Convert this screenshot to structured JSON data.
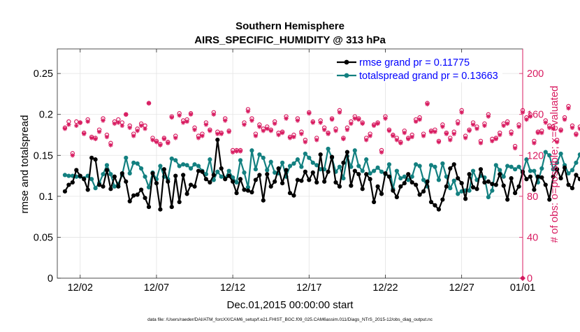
{
  "chart_data": {
    "type": "line",
    "title": "Southern Hemisphere",
    "subtitle": "AIRS_SPECIFIC_HUMIDITY @ 313 hPa",
    "xlabel": "Dec.01,2015 00:00:00 start",
    "ylabel_left": "rmse and totalspread",
    "ylabel_right": "# of obs: o=possible; ×=evaluated",
    "footnote": "data file: /Users/raeder/DAI/ATM_forcXX/CAM6_setup/f.e21.FHIST_BGC.f09_025.CAM6assim.011/Diags_NTrS_2015-12/obs_diag_output.nc",
    "xlim": [
      0.5,
      31.0
    ],
    "ylim_left": [
      0,
      0.28
    ],
    "ylim_right": [
      0,
      224
    ],
    "x_ticks": [
      2,
      7,
      12,
      17,
      22,
      27,
      31
    ],
    "x_tick_labels": [
      "12/02",
      "12/07",
      "12/12",
      "12/17",
      "12/22",
      "12/27",
      "01/01"
    ],
    "y_ticks_left": [
      0,
      0.05,
      0.1,
      0.15,
      0.2,
      0.25
    ],
    "y_tick_labels_left": [
      "0",
      "0.05",
      "0.1",
      "0.15",
      "0.2",
      "0.25"
    ],
    "y_ticks_right": [
      0,
      40,
      80,
      120,
      160,
      200
    ],
    "y_tick_labels_right": [
      "0",
      "40",
      "80",
      "120",
      "160",
      "200"
    ],
    "grid": true,
    "legend_position": "top-right",
    "colors": {
      "rmse": "#000000",
      "spread": "#138080",
      "obs": "#d81b60",
      "axis": "#262626",
      "grid": "#e3e3e3"
    },
    "series": [
      {
        "name": "rmse grand pr = 0.11775",
        "axis": "left",
        "values": [
          0.106,
          0.114,
          0.117,
          0.132,
          0.125,
          0.121,
          0.108,
          0.147,
          0.145,
          0.114,
          0.112,
          0.132,
          0.109,
          0.124,
          0.112,
          0.128,
          0.118,
          0.094,
          0.101,
          0.102,
          0.108,
          0.098,
          0.087,
          0.128,
          0.116,
          0.084,
          0.133,
          0.118,
          0.087,
          0.125,
          0.093,
          0.126,
          0.103,
          0.114,
          0.112,
          0.131,
          0.13,
          0.121,
          0.117,
          0.126,
          0.169,
          0.134,
          0.121,
          0.125,
          0.118,
          0.104,
          0.121,
          0.108,
          0.107,
          0.105,
          0.12,
          0.126,
          0.095,
          0.127,
          0.112,
          0.118,
          0.134,
          0.116,
          0.132,
          0.104,
          0.101,
          0.12,
          0.119,
          0.13,
          0.12,
          0.129,
          0.117,
          0.151,
          0.118,
          0.13,
          0.148,
          0.117,
          0.112,
          0.141,
          0.154,
          0.113,
          0.131,
          0.127,
          0.109,
          0.127,
          0.121,
          0.093,
          0.112,
          0.103,
          0.128,
          0.124,
          0.107,
          0.099,
          0.112,
          0.116,
          0.127,
          0.117,
          0.114,
          0.102,
          0.106,
          0.118,
          0.093,
          0.089,
          0.084,
          0.096,
          0.112,
          0.134,
          0.139,
          0.122,
          0.116,
          0.097,
          0.127,
          0.111,
          0.109,
          0.133,
          0.117,
          0.118,
          0.115,
          0.114,
          0.127,
          0.113,
          0.096,
          0.122,
          0.104,
          0.112,
          0.13,
          0.121,
          0.124,
          0.108,
          0.124,
          0.123,
          0.114,
          0.096,
          0.124,
          0.133,
          0.122,
          0.135,
          0.114,
          0.11,
          0.126,
          0.121,
          0.118,
          0.113,
          0.119,
          0.125,
          0.111,
          0.117,
          0.102,
          0.114,
          0.118,
          0.099,
          0.107,
          0.136,
          0.11,
          0.118,
          0.126,
          0.104,
          0.12,
          0.107,
          0.115,
          0.127,
          0.121,
          0.136,
          0.138,
          0.106,
          0.112,
          0.13,
          0.125,
          0.131,
          0.135,
          0.113,
          0.121,
          0.129,
          0.122,
          0.104,
          0.105,
          0.163,
          0.14,
          0.132
        ]
      },
      {
        "name": "totalspread grand pr = 0.13663",
        "axis": "left",
        "values": [
          0.126,
          0.125,
          0.125,
          0.124,
          0.124,
          0.122,
          0.125,
          0.121,
          0.11,
          0.116,
          0.127,
          0.138,
          0.127,
          0.112,
          0.115,
          0.126,
          0.147,
          0.128,
          0.141,
          0.14,
          0.134,
          0.124,
          0.111,
          0.129,
          0.121,
          0.137,
          0.124,
          0.121,
          0.146,
          0.144,
          0.137,
          0.139,
          0.138,
          0.134,
          0.139,
          0.137,
          0.131,
          0.127,
          0.145,
          0.12,
          0.13,
          0.124,
          0.122,
          0.131,
          0.123,
          0.117,
          0.144,
          0.129,
          0.111,
          0.156,
          0.133,
          0.151,
          0.147,
          0.132,
          0.142,
          0.129,
          0.128,
          0.141,
          0.124,
          0.137,
          0.14,
          0.145,
          0.136,
          0.152,
          0.147,
          0.141,
          0.138,
          0.133,
          0.133,
          0.158,
          0.147,
          0.13,
          0.136,
          0.122,
          0.149,
          0.136,
          0.156,
          0.137,
          0.131,
          0.145,
          0.128,
          0.131,
          0.135,
          0.13,
          0.127,
          0.139,
          0.109,
          0.131,
          0.122,
          0.124,
          0.12,
          0.124,
          0.139,
          0.137,
          0.12,
          0.112,
          0.138,
          0.136,
          0.12,
          0.14,
          0.124,
          0.11,
          0.119,
          0.103,
          0.106,
          0.107,
          0.107,
          0.131,
          0.12,
          0.125,
          0.123,
          0.099,
          0.107,
          0.138,
          0.132,
          0.124,
          0.137,
          0.136,
          0.133,
          0.136,
          0.129,
          0.145,
          0.131,
          0.131,
          0.117,
          0.134,
          0.154,
          0.15,
          0.133,
          0.141,
          0.152,
          0.138,
          0.128,
          0.132,
          0.141,
          0.151,
          0.133,
          0.142,
          0.136,
          0.145,
          0.129,
          0.151,
          0.139,
          0.114,
          0.135,
          0.113,
          0.121,
          0.138,
          0.134,
          0.13,
          0.119,
          0.116,
          0.14,
          0.111,
          0.133,
          0.124,
          0.127,
          0.135,
          0.123,
          0.148,
          0.144,
          0.136,
          0.134,
          0.124,
          0.138,
          0.148,
          0.132,
          0.144,
          0.13,
          0.122,
          0.145,
          0.155,
          0.151,
          0.124
        ]
      },
      {
        "name": "obs possible",
        "axis": "right",
        "marker": "circle",
        "values": [
          147,
          153,
          122,
          153,
          152,
          142,
          155,
          138,
          137,
          145,
          156,
          140,
          132,
          153,
          155,
          152,
          160,
          149,
          141,
          146,
          151,
          149,
          171,
          137,
          134,
          131,
          137,
          133,
          158,
          139,
          161,
          154,
          155,
          161,
          147,
          139,
          141,
          152,
          145,
          162,
          143,
          142,
          156,
          144,
          125,
          125,
          125,
          152,
          165,
          156,
          141,
          150,
          146,
          148,
          145,
          153,
          142,
          143,
          158,
          138,
          140,
          156,
          143,
          135,
          162,
          153,
          137,
          154,
          147,
          142,
          156,
          146,
          164,
          137,
          147,
          153,
          158,
          156,
          152,
          137,
          141,
          150,
          152,
          125,
          158,
          145,
          140,
          137,
          133,
          144,
          137,
          140,
          155,
          157,
          141,
          171,
          144,
          145,
          134,
          150,
          142,
          137,
          143,
          153,
          164,
          139,
          145,
          152,
          148,
          134,
          151,
          160,
          136,
          137,
          142,
          151,
          153,
          143,
          129,
          150,
          164,
          157,
          160,
          134,
          143,
          144,
          154,
          149,
          148,
          135,
          145,
          157,
          168,
          149,
          141,
          148,
          136,
          158,
          152,
          142,
          127,
          160,
          153,
          171,
          155,
          145,
          153,
          137,
          166,
          145,
          152,
          175,
          161,
          175,
          151,
          135,
          171,
          165,
          174,
          146,
          154,
          140,
          130,
          150,
          136,
          155,
          154,
          149,
          159,
          128,
          136,
          158,
          158,
          166,
          149
        ]
      },
      {
        "name": "obs evaluated",
        "axis": "right",
        "marker": "asterisk",
        "values": [
          146,
          150,
          120,
          149,
          152,
          141,
          153,
          137,
          136,
          143,
          154,
          138,
          130,
          151,
          152,
          149,
          160,
          147,
          139,
          144,
          149,
          146,
          171,
          135,
          133,
          130,
          136,
          132,
          157,
          137,
          159,
          152,
          153,
          160,
          145,
          137,
          139,
          150,
          144,
          160,
          141,
          141,
          154,
          143,
          123,
          124,
          124,
          150,
          163,
          154,
          139,
          148,
          144,
          146,
          144,
          151,
          140,
          142,
          156,
          137,
          138,
          154,
          141,
          133,
          161,
          152,
          135,
          152,
          145,
          141,
          155,
          144,
          162,
          136,
          145,
          151,
          156,
          155,
          151,
          135,
          139,
          149,
          151,
          123,
          156,
          144,
          139,
          135,
          132,
          142,
          136,
          138,
          153,
          155,
          139,
          170,
          143,
          143,
          133,
          148,
          141,
          135,
          141,
          151,
          162,
          137,
          144,
          150,
          146,
          132,
          149,
          158,
          134,
          136,
          140,
          149,
          151,
          141,
          127,
          148,
          162,
          155,
          158,
          132,
          142,
          142,
          152,
          147,
          146,
          133,
          144,
          155,
          166,
          147,
          140,
          146,
          134,
          156,
          150,
          140,
          125,
          158,
          151,
          169,
          153,
          143,
          151,
          135,
          164,
          143,
          150,
          173,
          159,
          173,
          149,
          133,
          169,
          163,
          172,
          144,
          152,
          138,
          128,
          148,
          134,
          153,
          153,
          147,
          157,
          126,
          134,
          156,
          156,
          164,
          147
        ]
      }
    ]
  }
}
